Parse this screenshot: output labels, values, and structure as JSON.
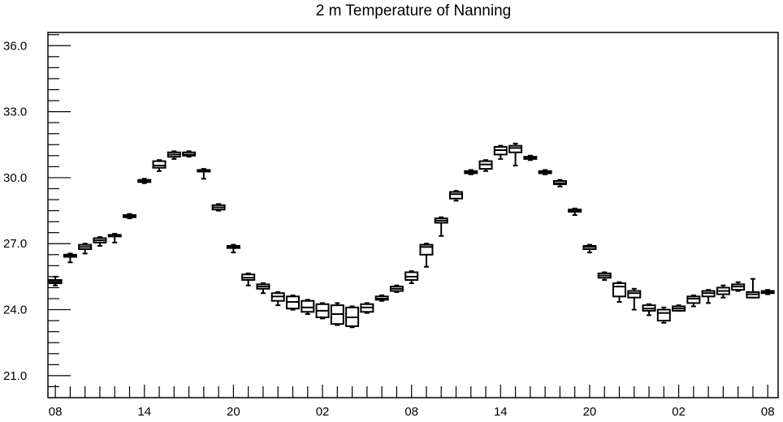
{
  "chart_data": {
    "type": "box",
    "title": "2 m Temperature of Nanning",
    "xlabel": "",
    "ylabel": "",
    "ylim": [
      20.0,
      36.6
    ],
    "yticks": [
      "21.0",
      "24.0",
      "27.0",
      "30.0",
      "33.0",
      "36.0"
    ],
    "ytick_values": [
      21.0,
      24.0,
      27.0,
      30.0,
      33.0,
      36.0
    ],
    "xlim": [
      7.5,
      56.7
    ],
    "xticks": [
      "08",
      "14",
      "20",
      "02",
      "08",
      "14",
      "20",
      "02",
      "08"
    ],
    "xtick_hours": [
      8,
      14,
      20,
      26,
      32,
      38,
      44,
      50,
      56
    ],
    "grid": false,
    "series": [
      {
        "boxes": [
          {
            "hour": 8,
            "min": 25.1,
            "q1": 25.2,
            "median": 25.27,
            "q3": 25.35,
            "max": 25.5
          },
          {
            "hour": 9,
            "min": 26.15,
            "q1": 26.4,
            "median": 26.45,
            "q3": 26.5,
            "max": 26.55
          },
          {
            "hour": 10,
            "min": 26.55,
            "q1": 26.75,
            "median": 26.85,
            "q3": 26.95,
            "max": 27.0
          },
          {
            "hour": 11,
            "min": 26.9,
            "q1": 27.05,
            "median": 27.15,
            "q3": 27.25,
            "max": 27.3
          },
          {
            "hour": 12,
            "min": 27.05,
            "q1": 27.35,
            "median": 27.37,
            "q3": 27.4,
            "max": 27.45
          },
          {
            "hour": 13,
            "min": 28.15,
            "q1": 28.2,
            "median": 28.25,
            "q3": 28.3,
            "max": 28.35
          },
          {
            "hour": 14,
            "min": 29.75,
            "q1": 29.8,
            "median": 29.85,
            "q3": 29.9,
            "max": 29.95
          },
          {
            "hour": 15,
            "min": 30.3,
            "q1": 30.45,
            "median": 30.55,
            "q3": 30.75,
            "max": 30.8
          },
          {
            "hour": 16,
            "min": 30.85,
            "q1": 30.95,
            "median": 31.05,
            "q3": 31.15,
            "max": 31.2
          },
          {
            "hour": 17,
            "min": 30.95,
            "q1": 31.0,
            "median": 31.05,
            "q3": 31.15,
            "max": 31.2
          },
          {
            "hour": 18,
            "min": 29.95,
            "q1": 30.3,
            "median": 30.33,
            "q3": 30.35,
            "max": 30.4
          },
          {
            "hour": 19,
            "min": 28.5,
            "q1": 28.55,
            "median": 28.65,
            "q3": 28.75,
            "max": 28.8
          },
          {
            "hour": 20,
            "min": 26.6,
            "q1": 26.8,
            "median": 26.85,
            "q3": 26.9,
            "max": 26.95
          },
          {
            "hour": 21,
            "min": 25.1,
            "q1": 25.35,
            "median": 25.45,
            "q3": 25.6,
            "max": 25.65
          },
          {
            "hour": 22,
            "min": 24.75,
            "q1": 24.95,
            "median": 25.05,
            "q3": 25.15,
            "max": 25.2
          },
          {
            "hour": 23,
            "min": 24.2,
            "q1": 24.4,
            "median": 24.6,
            "q3": 24.75,
            "max": 24.8
          },
          {
            "hour": 24,
            "min": 24.0,
            "q1": 24.05,
            "median": 24.35,
            "q3": 24.6,
            "max": 24.65
          },
          {
            "hour": 25,
            "min": 23.8,
            "q1": 23.9,
            "median": 24.1,
            "q3": 24.4,
            "max": 24.45
          },
          {
            "hour": 26,
            "min": 23.6,
            "q1": 23.65,
            "median": 23.95,
            "q3": 24.25,
            "max": 24.3
          },
          {
            "hour": 27,
            "min": 23.3,
            "q1": 23.35,
            "median": 23.8,
            "q3": 24.2,
            "max": 24.3
          },
          {
            "hour": 28,
            "min": 23.2,
            "q1": 23.25,
            "median": 23.65,
            "q3": 24.1,
            "max": 24.15
          },
          {
            "hour": 29,
            "min": 23.85,
            "q1": 23.9,
            "median": 24.1,
            "q3": 24.25,
            "max": 24.3
          },
          {
            "hour": 30,
            "min": 24.4,
            "q1": 24.45,
            "median": 24.5,
            "q3": 24.6,
            "max": 24.65
          },
          {
            "hour": 31,
            "min": 24.8,
            "q1": 24.85,
            "median": 24.95,
            "q3": 25.05,
            "max": 25.1
          },
          {
            "hour": 32,
            "min": 25.2,
            "q1": 25.35,
            "median": 25.5,
            "q3": 25.7,
            "max": 25.75
          },
          {
            "hour": 33,
            "min": 25.95,
            "q1": 26.5,
            "median": 26.85,
            "q3": 26.95,
            "max": 27.0
          },
          {
            "hour": 34,
            "min": 27.35,
            "q1": 27.95,
            "median": 28.05,
            "q3": 28.15,
            "max": 28.2
          },
          {
            "hour": 35,
            "min": 28.95,
            "q1": 29.05,
            "median": 29.25,
            "q3": 29.35,
            "max": 29.4
          },
          {
            "hour": 36,
            "min": 30.15,
            "q1": 30.2,
            "median": 30.25,
            "q3": 30.3,
            "max": 30.35
          },
          {
            "hour": 37,
            "min": 30.3,
            "q1": 30.4,
            "median": 30.6,
            "q3": 30.75,
            "max": 30.8
          },
          {
            "hour": 38,
            "min": 30.85,
            "q1": 31.05,
            "median": 31.25,
            "q3": 31.4,
            "max": 31.45
          },
          {
            "hour": 39,
            "min": 30.55,
            "q1": 31.15,
            "median": 31.35,
            "q3": 31.45,
            "max": 31.55
          },
          {
            "hour": 40,
            "min": 30.8,
            "q1": 30.85,
            "median": 30.9,
            "q3": 30.95,
            "max": 31.0
          },
          {
            "hour": 41,
            "min": 30.15,
            "q1": 30.2,
            "median": 30.25,
            "q3": 30.3,
            "max": 30.35
          },
          {
            "hour": 42,
            "min": 29.6,
            "q1": 29.7,
            "median": 29.75,
            "q3": 29.85,
            "max": 29.9
          },
          {
            "hour": 43,
            "min": 28.3,
            "q1": 28.45,
            "median": 28.5,
            "q3": 28.55,
            "max": 28.6
          },
          {
            "hour": 44,
            "min": 26.6,
            "q1": 26.75,
            "median": 26.85,
            "q3": 26.9,
            "max": 26.95
          },
          {
            "hour": 45,
            "min": 25.35,
            "q1": 25.45,
            "median": 25.55,
            "q3": 25.65,
            "max": 25.7
          },
          {
            "hour": 46,
            "min": 24.35,
            "q1": 24.6,
            "median": 25.05,
            "q3": 25.2,
            "max": 25.25
          },
          {
            "hour": 47,
            "min": 24.0,
            "q1": 24.55,
            "median": 24.75,
            "q3": 24.85,
            "max": 24.95
          },
          {
            "hour": 48,
            "min": 23.75,
            "q1": 23.95,
            "median": 24.05,
            "q3": 24.2,
            "max": 24.25
          },
          {
            "hour": 49,
            "min": 23.4,
            "q1": 23.5,
            "median": 23.85,
            "q3": 24.0,
            "max": 24.1
          },
          {
            "hour": 50,
            "min": 23.95,
            "q1": 23.95,
            "median": 24.05,
            "q3": 24.15,
            "max": 24.2
          },
          {
            "hour": 51,
            "min": 24.15,
            "q1": 24.3,
            "median": 24.5,
            "q3": 24.6,
            "max": 24.65
          },
          {
            "hour": 52,
            "min": 24.3,
            "q1": 24.6,
            "median": 24.75,
            "q3": 24.85,
            "max": 24.9
          },
          {
            "hour": 53,
            "min": 24.55,
            "q1": 24.7,
            "median": 24.85,
            "q3": 25.0,
            "max": 25.1
          },
          {
            "hour": 54,
            "min": 24.85,
            "q1": 24.9,
            "median": 25.05,
            "q3": 25.15,
            "max": 25.25
          },
          {
            "hour": 55,
            "min": 24.55,
            "q1": 24.55,
            "median": 24.7,
            "q3": 24.8,
            "max": 25.4
          },
          {
            "hour": 56,
            "min": 24.7,
            "q1": 24.75,
            "median": 24.8,
            "q3": 24.85,
            "max": 24.9
          }
        ]
      }
    ]
  }
}
